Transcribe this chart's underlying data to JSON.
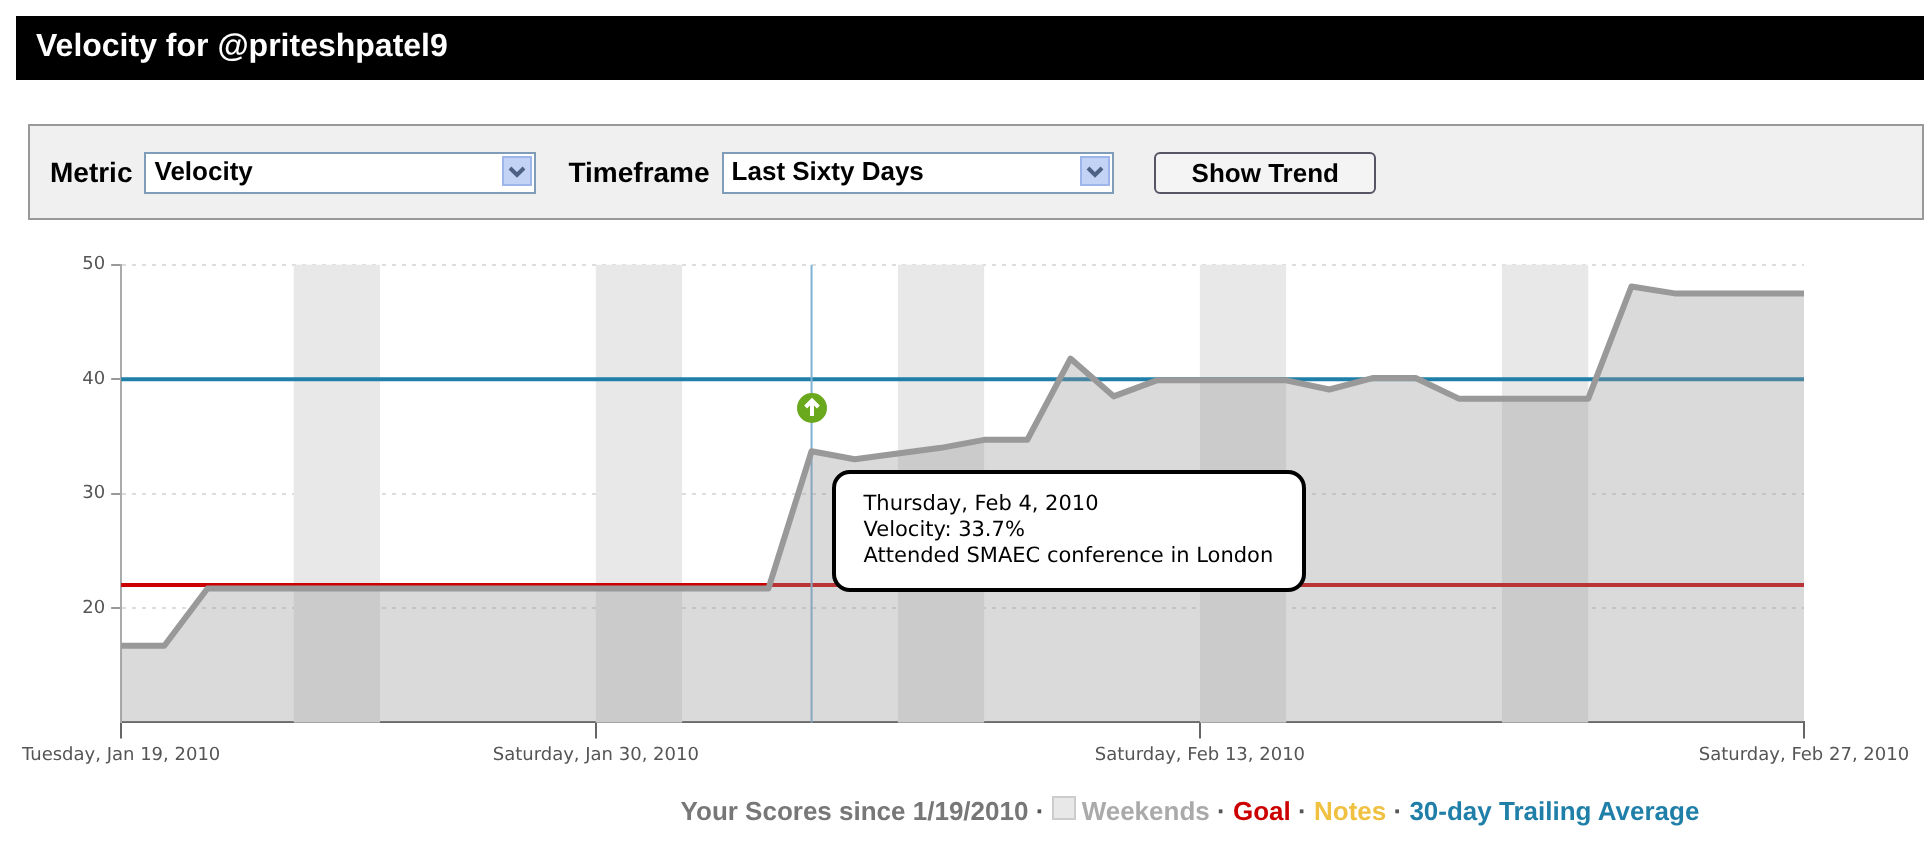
{
  "chart_data": {
    "type": "area",
    "title": "Velocity for @priteshpatel9",
    "x": [
      "2010-01-19",
      "2010-01-20",
      "2010-01-21",
      "2010-02-03",
      "2010-02-04",
      "2010-02-05",
      "2010-02-07",
      "2010-02-08",
      "2010-02-09",
      "2010-02-10",
      "2010-02-11",
      "2010-02-12",
      "2010-02-15",
      "2010-02-16",
      "2010-02-17",
      "2010-02-18",
      "2010-02-19",
      "2010-02-22",
      "2010-02-23",
      "2010-02-24",
      "2010-02-27"
    ],
    "series": [
      {
        "name": "Your Scores since 1/19/2010",
        "color": "#999999",
        "values": [
          16.7,
          16.7,
          21.7,
          21.7,
          33.7,
          33.0,
          34.0,
          34.7,
          34.7,
          41.8,
          38.5,
          39.9,
          39.9,
          39.1,
          40.1,
          40.1,
          38.3,
          38.3,
          48.1,
          47.5,
          47.5
        ]
      }
    ],
    "xlim": [
      "2010-01-19",
      "2010-02-27"
    ],
    "xticks": [
      {
        "value": "2010-01-19",
        "label": "Tuesday, Jan 19, 2010"
      },
      {
        "value": "2010-01-30",
        "label": "Saturday, Jan 30, 2010"
      },
      {
        "value": "2010-02-13",
        "label": "Saturday, Feb 13, 2010"
      },
      {
        "value": "2010-02-27",
        "label": "Saturday, Feb 27, 2010"
      }
    ],
    "ylim": [
      10,
      50
    ],
    "yticks": [
      20,
      30,
      40,
      50
    ],
    "grid": "y",
    "marker": "none",
    "legend": "bottom",
    "bands": [
      {
        "axis": "x",
        "from": "2010-01-23",
        "to": "2010-01-25",
        "label": "Weekends",
        "color": "#e8e8e8"
      },
      {
        "axis": "x",
        "from": "2010-01-30",
        "to": "2010-02-01",
        "label": null,
        "color": "#e8e8e8"
      },
      {
        "axis": "x",
        "from": "2010-02-06",
        "to": "2010-02-08",
        "label": null,
        "color": "#e8e8e8"
      },
      {
        "axis": "x",
        "from": "2010-02-13",
        "to": "2010-02-15",
        "label": null,
        "color": "#e8e8e8"
      },
      {
        "axis": "x",
        "from": "2010-02-20",
        "to": "2010-02-22",
        "label": null,
        "color": "#e8e8e8"
      }
    ],
    "ref_lines": [
      {
        "axis": "y",
        "value": 22,
        "label": "Goal",
        "color": "#cc0000"
      },
      {
        "axis": "y",
        "value": 40,
        "label": "30-day Trailing Average",
        "color": "#1f7fa8"
      },
      {
        "axis": "x",
        "value": "2010-02-04",
        "label": null,
        "color": "#7fb3d5"
      }
    ],
    "annotations": [
      "Metric",
      "Velocity",
      "Timeframe",
      "Last Sixty Days",
      "Show Trend",
      "Notes",
      "·",
      "Thursday, Feb 4, 2010\nVelocity: 33.7%\nAttended SMAEC conference in London"
    ]
  }
}
